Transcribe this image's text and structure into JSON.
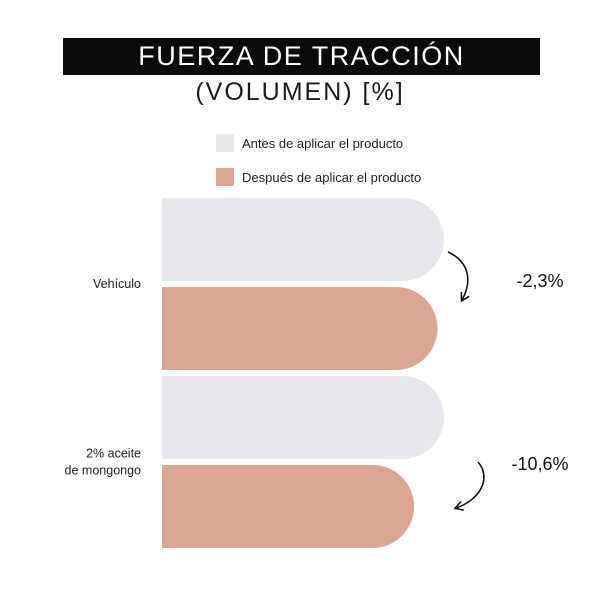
{
  "chart_data": {
    "type": "bar",
    "orientation": "horizontal",
    "title": "FUERZA DE TRACCIÓN",
    "subtitle": "(VOLUMEN) [%]",
    "categories": [
      "Vehículo",
      "2% aceite de mongongo"
    ],
    "series": [
      {
        "name": "Antes de aplicar el producto",
        "color": "#e7e6ea",
        "values": [
          100,
          100
        ]
      },
      {
        "name": "Después de aplicar el producto",
        "color": "#dba694",
        "values": [
          97.7,
          89.4
        ]
      }
    ],
    "changes": [
      "-2,3%",
      "-10,6%"
    ],
    "legend_position": "top",
    "grid": false
  },
  "categories_display": [
    {
      "lines": [
        "Vehículo"
      ]
    },
    {
      "lines": [
        "2% aceite",
        "de mongongo"
      ]
    }
  ]
}
